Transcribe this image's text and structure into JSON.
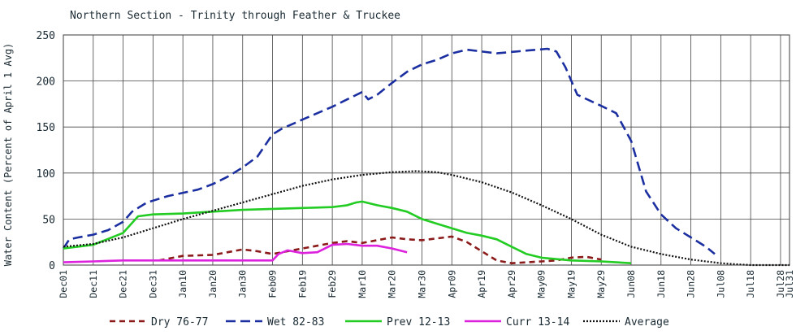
{
  "chart_data": {
    "type": "line",
    "title": "Northern Section - Trinity through Feather & Truckee",
    "ylabel": "Water Content (Percent of April 1 Avg)",
    "xlabel": "",
    "ylim": [
      0,
      250
    ],
    "yticks": [
      0,
      50,
      100,
      150,
      200,
      250
    ],
    "grid": true,
    "legend_position": "bottom",
    "x_tick_labels": [
      "Dec01",
      "Dec11",
      "Dec21",
      "Dec31",
      "Jan10",
      "Jan20",
      "Jan30",
      "Feb09",
      "Feb19",
      "Feb29",
      "Mar10",
      "Mar20",
      "Mar30",
      "Apr09",
      "Apr19",
      "Apr29",
      "May09",
      "May19",
      "May29",
      "Jun08",
      "Jun18",
      "Jun28",
      "Jul08",
      "Jul18",
      "Jul28",
      "Jul31"
    ],
    "x_tick_days": [
      0,
      10,
      20,
      30,
      40,
      50,
      60,
      70,
      80,
      90,
      100,
      110,
      120,
      130,
      140,
      150,
      160,
      170,
      180,
      190,
      200,
      210,
      220,
      230,
      240,
      243
    ],
    "series": [
      {
        "name": "Dry 76-77",
        "color": "#8b1a1a",
        "dash": "7,5",
        "x": [
          32,
          40,
          50,
          55,
          60,
          65,
          70,
          75,
          80,
          85,
          90,
          95,
          100,
          105,
          110,
          115,
          120,
          125,
          130,
          135,
          140,
          145,
          150,
          155,
          160,
          165,
          170,
          175,
          180
        ],
        "y": [
          5,
          10,
          11,
          14,
          17,
          15,
          12,
          15,
          18,
          21,
          24,
          26,
          24,
          27,
          30,
          28,
          27,
          29,
          31,
          25,
          15,
          5,
          2,
          3,
          4,
          5,
          8,
          9,
          6
        ]
      },
      {
        "name": "Wet 82-83",
        "color": "#1c2fa0",
        "dash": "12,6",
        "x": [
          0,
          2,
          5,
          10,
          15,
          20,
          23,
          28,
          35,
          45,
          50,
          55,
          60,
          65,
          70,
          73,
          80,
          90,
          95,
          100,
          102,
          105,
          110,
          115,
          120,
          125,
          130,
          135,
          145,
          155,
          162,
          165,
          168,
          172,
          180,
          185,
          190,
          195,
          200,
          205,
          210,
          215,
          218
        ],
        "y": [
          18,
          28,
          30,
          33,
          38,
          47,
          58,
          68,
          75,
          82,
          88,
          96,
          106,
          118,
          142,
          148,
          158,
          172,
          180,
          188,
          180,
          185,
          198,
          210,
          218,
          223,
          230,
          234,
          230,
          233,
          235,
          232,
          215,
          185,
          173,
          165,
          135,
          80,
          55,
          40,
          30,
          20,
          12
        ]
      },
      {
        "name": "Prev 12-13",
        "color": "#22cc22",
        "dash": "",
        "x": [
          0,
          10,
          20,
          25,
          30,
          40,
          50,
          60,
          70,
          80,
          90,
          95,
          98,
          100,
          105,
          110,
          115,
          120,
          125,
          130,
          135,
          140,
          145,
          150,
          155,
          160,
          170,
          180,
          185,
          190
        ],
        "y": [
          18,
          22,
          35,
          53,
          55,
          56,
          58,
          60,
          61,
          62,
          63,
          65,
          68,
          69,
          65,
          62,
          58,
          50,
          45,
          40,
          35,
          32,
          28,
          20,
          12,
          8,
          5,
          4,
          3,
          2
        ]
      },
      {
        "name": "Curr 13-14",
        "color": "#dd22dd",
        "dash": "",
        "x": [
          0,
          10,
          20,
          30,
          40,
          50,
          60,
          65,
          70,
          72,
          75,
          80,
          85,
          90,
          95,
          100,
          105,
          110,
          115
        ],
        "y": [
          3,
          4,
          5,
          5,
          5,
          5,
          5,
          5,
          5,
          12,
          16,
          13,
          14,
          22,
          23,
          21,
          21,
          18,
          14
        ]
      },
      {
        "name": "Average",
        "color": "#111111",
        "dash": "2,2",
        "x": [
          0,
          10,
          20,
          30,
          40,
          50,
          60,
          70,
          80,
          90,
          100,
          110,
          118,
          125,
          130,
          140,
          150,
          160,
          170,
          180,
          190,
          200,
          210,
          220,
          225,
          230,
          240,
          243
        ],
        "y": [
          20,
          23,
          30,
          40,
          50,
          59,
          68,
          77,
          86,
          93,
          98,
          101,
          102,
          101,
          98,
          90,
          79,
          65,
          50,
          33,
          20,
          12,
          6,
          2,
          1,
          0,
          0,
          0
        ]
      }
    ]
  }
}
